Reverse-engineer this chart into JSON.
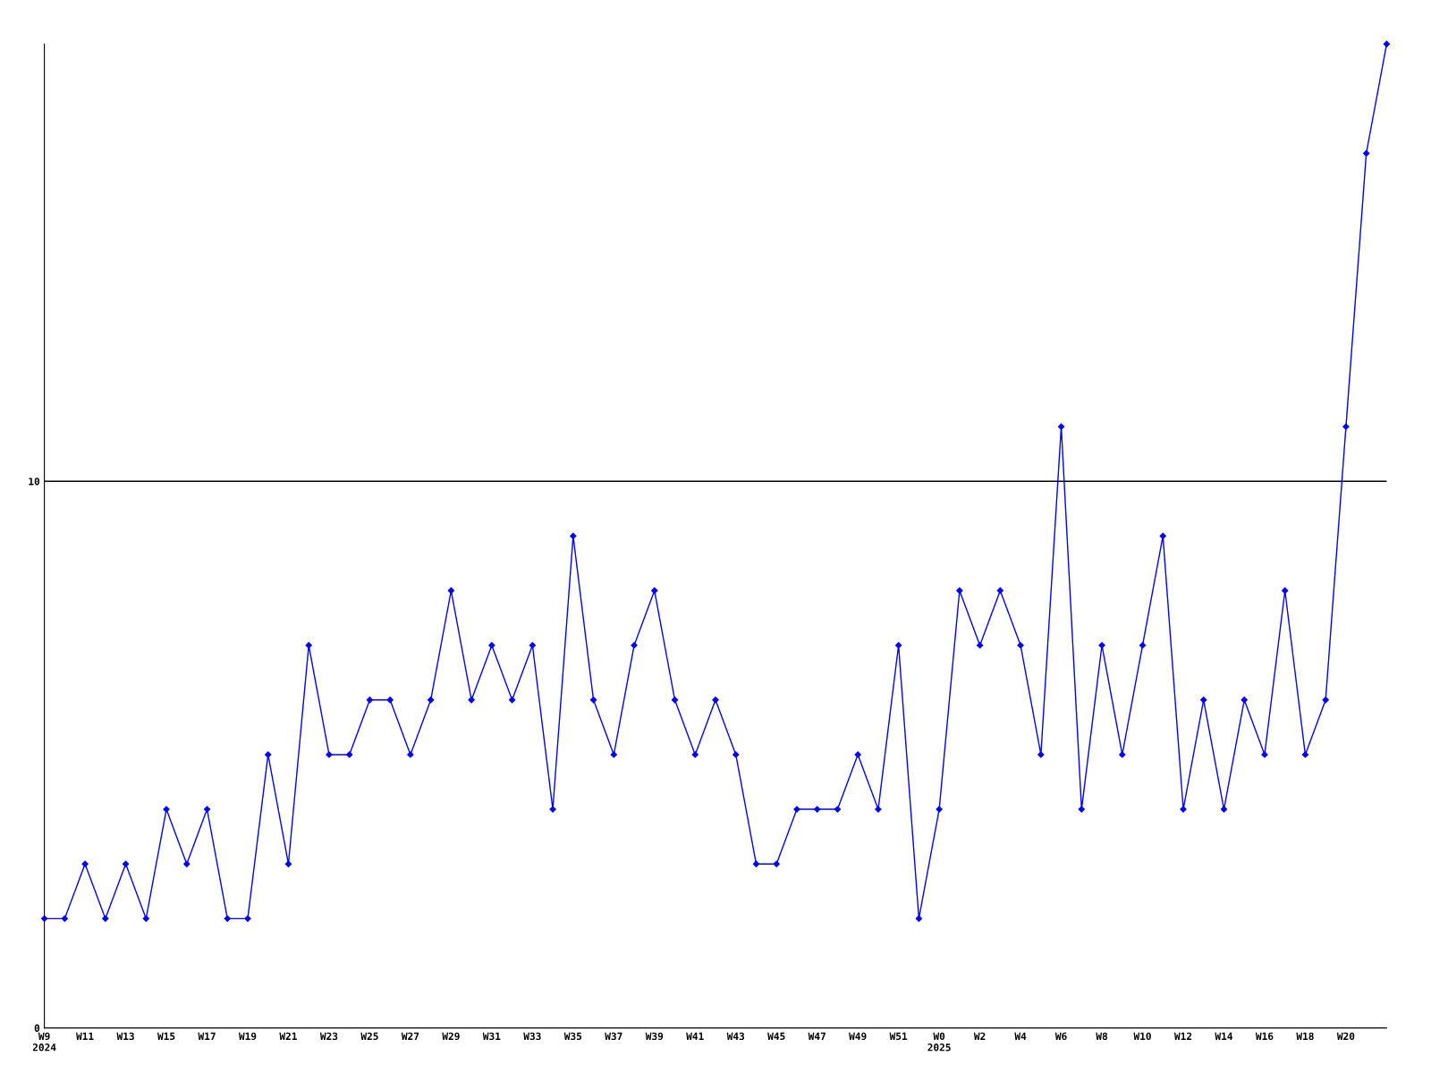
{
  "chart_data": {
    "type": "line",
    "categories": [
      "W9\n2024",
      null,
      "W11",
      null,
      "W13",
      null,
      "W15",
      null,
      "W17",
      null,
      "W19",
      null,
      "W21",
      null,
      "W23",
      null,
      "W25",
      null,
      "W27",
      null,
      "W29",
      null,
      "W31",
      null,
      "W33",
      null,
      "W35",
      null,
      "W37",
      null,
      "W39",
      null,
      "W41",
      null,
      "W43",
      null,
      "W45",
      null,
      "W47",
      null,
      "W49",
      null,
      "W51",
      null,
      "W0\n2025",
      null,
      "W2",
      null,
      "W4",
      null,
      "W6",
      null,
      "W8",
      null,
      "W10",
      null,
      "W12",
      null,
      "W14",
      null,
      "W16",
      null,
      "W18",
      null,
      "W20",
      null,
      null
    ],
    "series": [
      {
        "color": "#0000ff",
        "values": [
          2,
          2,
          3,
          2,
          3,
          2,
          4,
          3,
          4,
          2,
          2,
          5,
          3,
          7,
          5,
          5,
          6,
          6,
          5,
          6,
          8,
          6,
          7,
          6,
          7,
          4,
          9,
          6,
          5,
          7,
          8,
          6,
          5,
          6,
          5,
          3,
          3,
          4,
          4,
          4,
          5,
          4,
          7,
          2,
          4,
          8,
          7,
          8,
          7,
          5,
          11,
          4,
          7,
          5,
          7,
          9,
          4,
          6,
          4,
          6,
          5,
          8,
          5,
          6,
          11,
          16,
          18
        ]
      }
    ],
    "ylim": [
      0,
      18
    ],
    "yticks": [
      0,
      10
    ],
    "grid": "y",
    "marker": "diamond",
    "line_style": "solid"
  }
}
